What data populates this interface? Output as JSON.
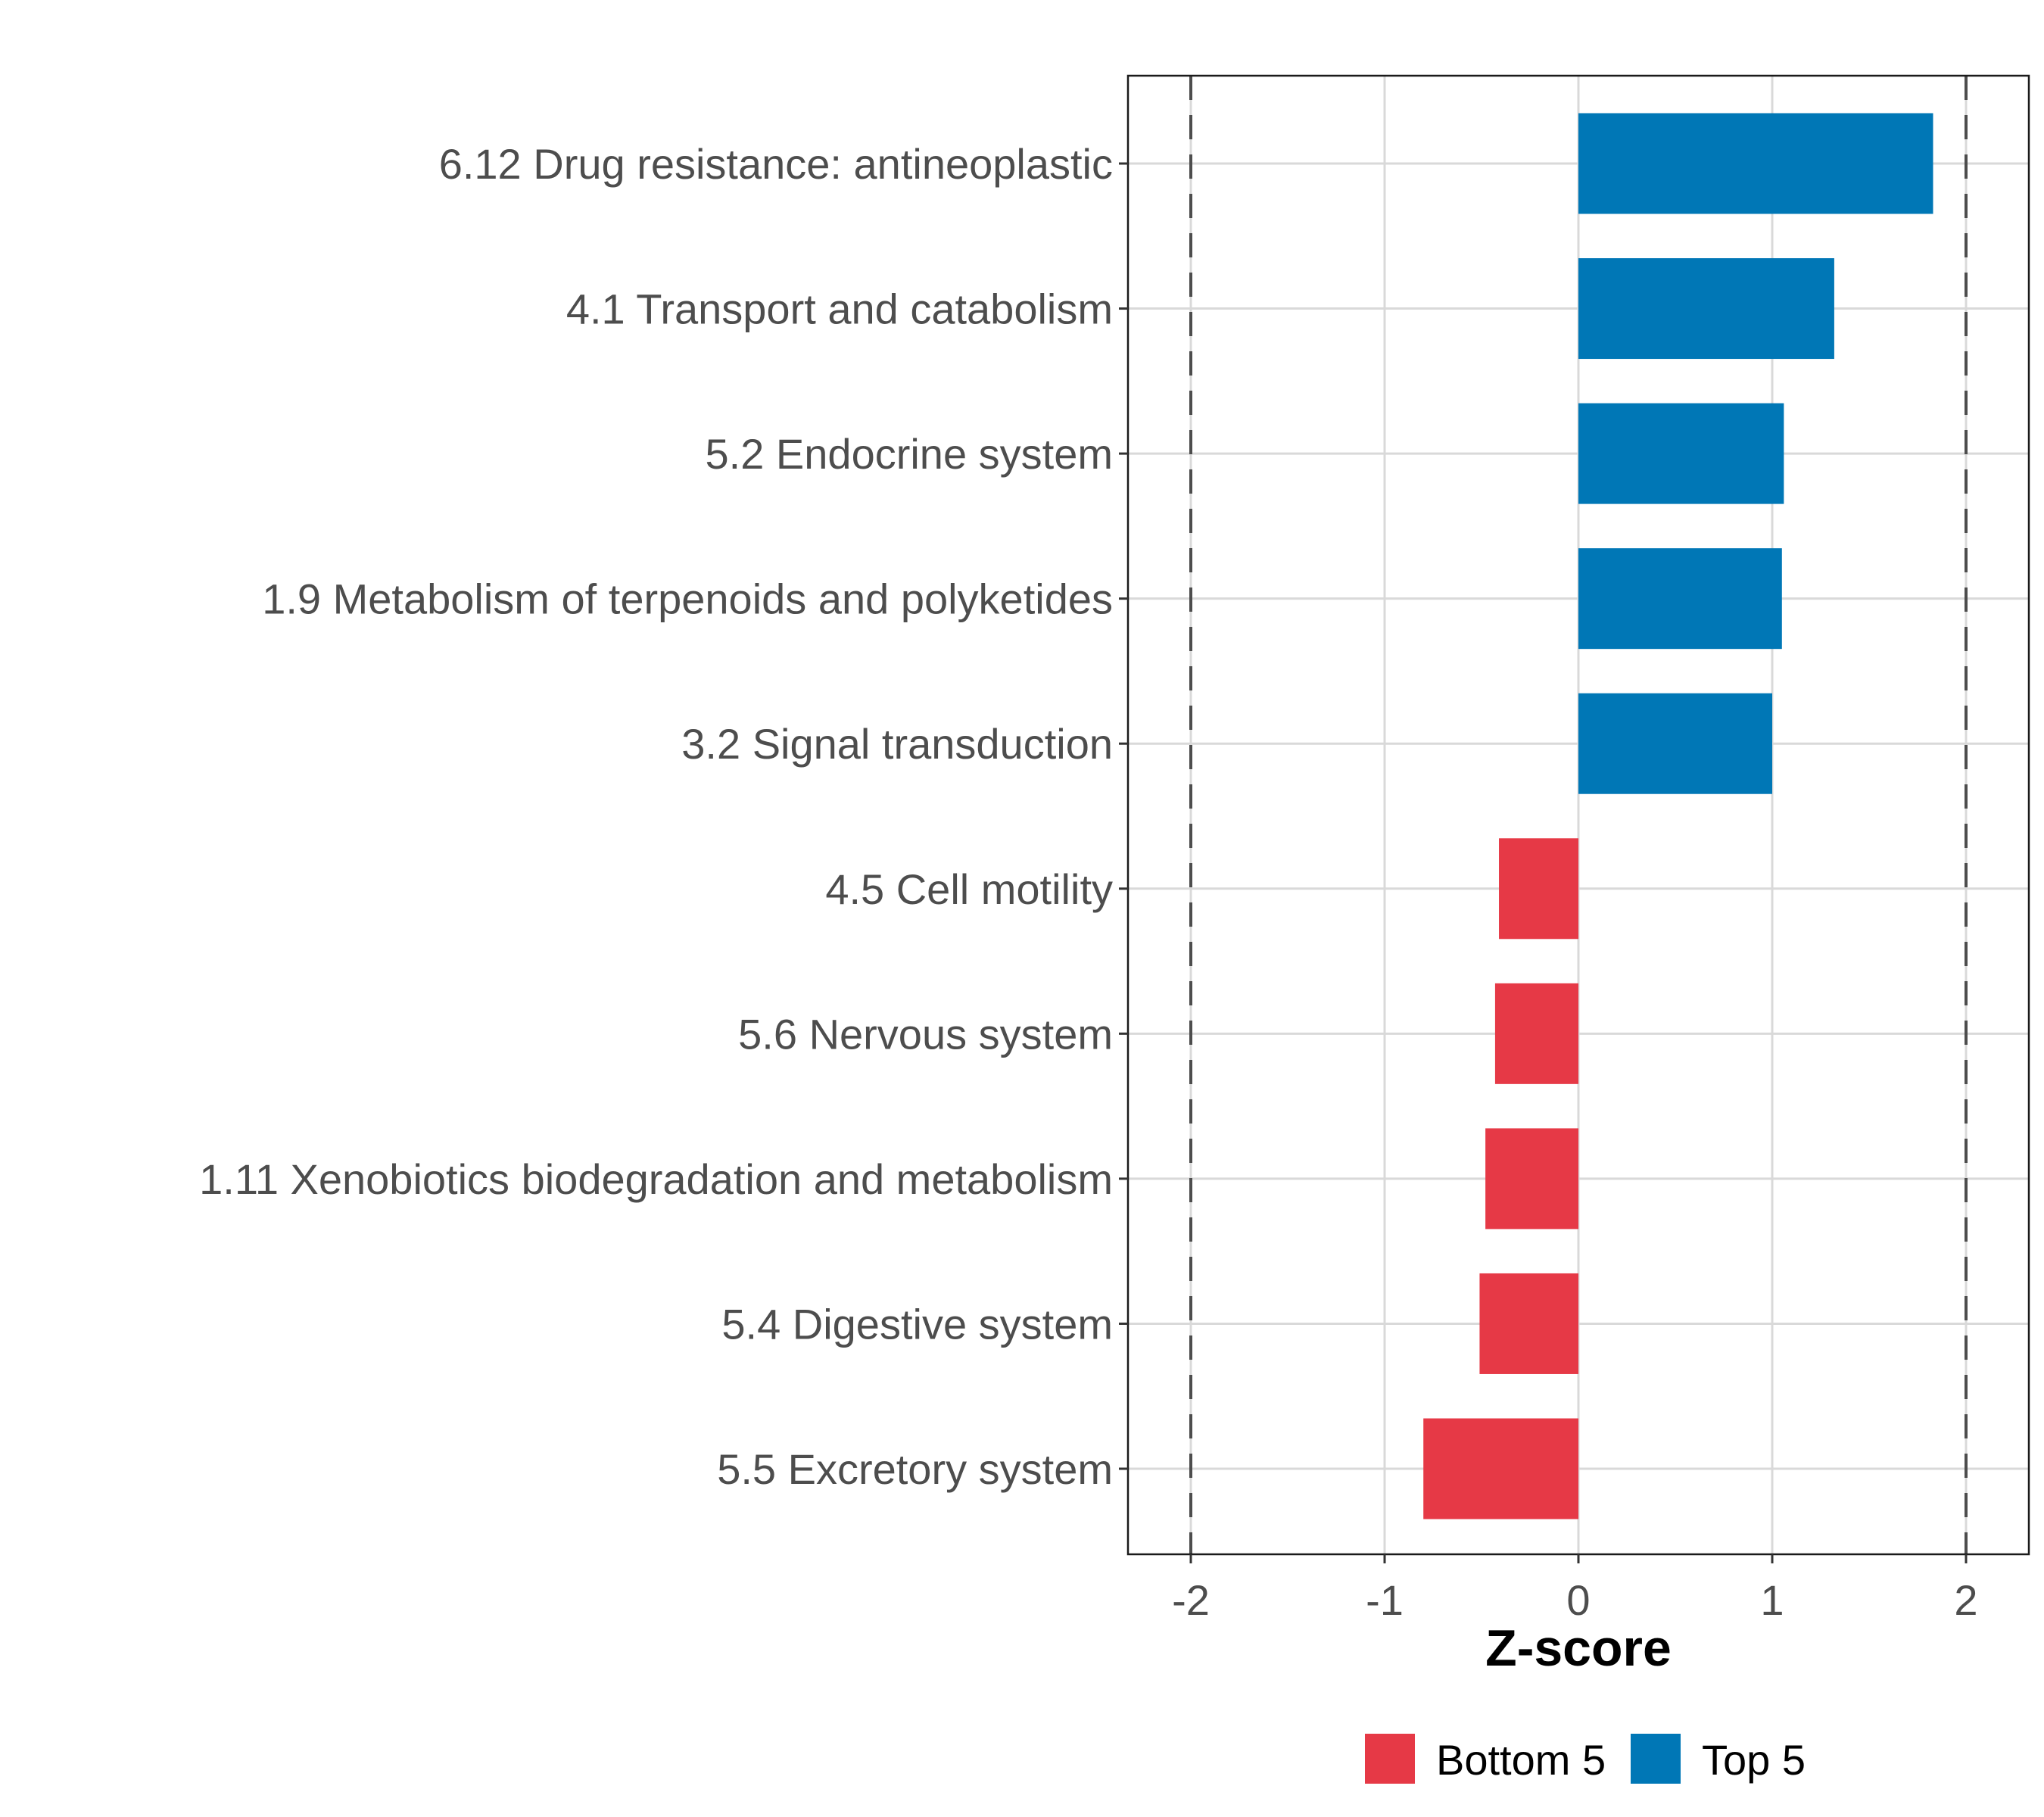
{
  "chart_data": {
    "type": "bar",
    "orientation": "horizontal",
    "title": "",
    "xlabel": "Z-score",
    "ylabel": "",
    "xlim": [
      -2.33,
      2.33
    ],
    "xticks": [
      -2,
      -1,
      0,
      1,
      2
    ],
    "xtick_labels": [
      "-2",
      "-1",
      "0",
      "1",
      "2"
    ],
    "grid": true,
    "reference_lines": [
      {
        "x": -2,
        "style": "dashed"
      },
      {
        "x": 2,
        "style": "dashed"
      }
    ],
    "categories": [
      "6.12 Drug resistance: antineoplastic",
      "4.1 Transport and catabolism",
      "5.2 Endocrine system",
      "1.9 Metabolism of terpenoids and polyketides",
      "3.2 Signal transduction",
      "4.5 Cell motility",
      "5.6 Nervous system",
      "1.11 Xenobiotics biodegradation and metabolism",
      "5.4 Digestive system",
      "5.5 Excretory system"
    ],
    "values": [
      1.83,
      1.32,
      1.06,
      1.05,
      1.0,
      -0.41,
      -0.43,
      -0.48,
      -0.51,
      -0.8
    ],
    "groups": [
      "Top 5",
      "Top 5",
      "Top 5",
      "Top 5",
      "Top 5",
      "Bottom 5",
      "Bottom 5",
      "Bottom 5",
      "Bottom 5",
      "Bottom 5"
    ],
    "legend": {
      "position": "bottom",
      "entries": [
        {
          "label": "Bottom 5",
          "color": "#E63946"
        },
        {
          "label": "Top 5",
          "color": "#0077B6"
        }
      ]
    },
    "colors": {
      "Top 5": "#0077B6",
      "Bottom 5": "#E63946"
    }
  }
}
